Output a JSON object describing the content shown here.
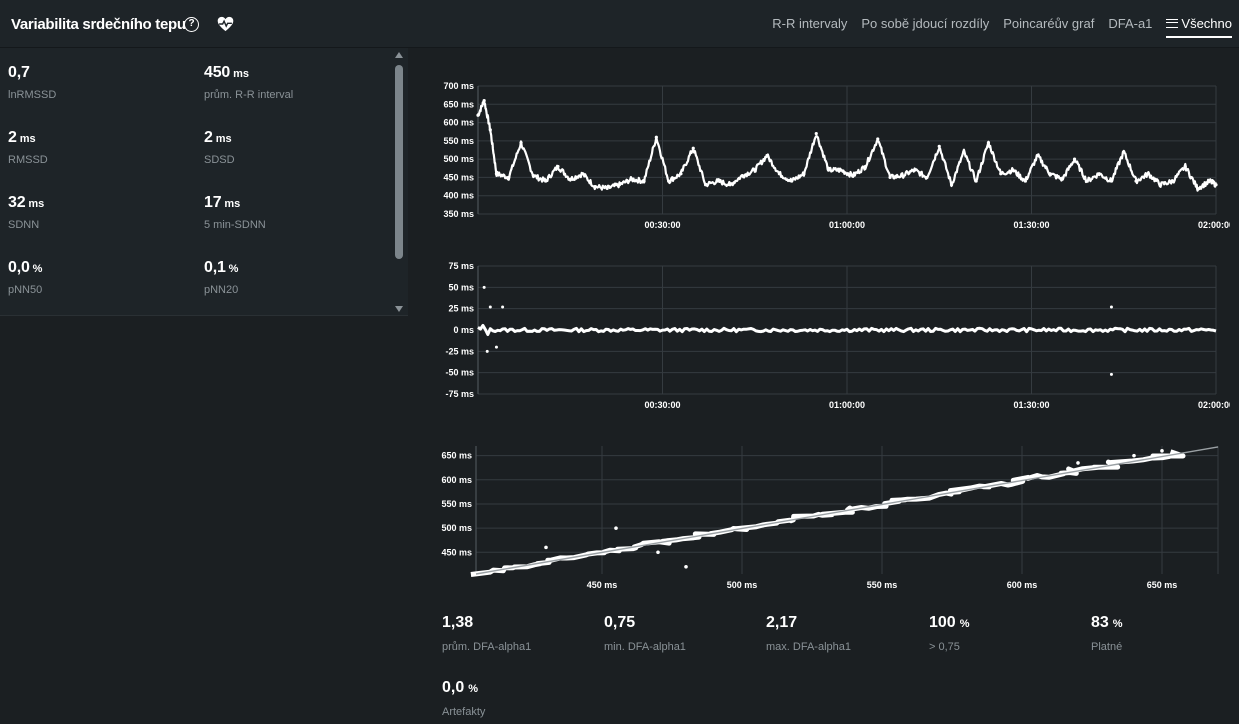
{
  "header": {
    "title": "Variabilita srdečního tepu",
    "help_icon": "question-circle-icon",
    "heart_icon": "heart-pulse-icon",
    "tabs": [
      {
        "label": "R-R intervaly"
      },
      {
        "label": "Po sobě jdoucí rozdíly"
      },
      {
        "label": "Poincaréův graf"
      },
      {
        "label": "DFA-a1"
      },
      {
        "label": "Všechno",
        "active": true
      }
    ]
  },
  "metrics": [
    {
      "value": "0,7",
      "unit": "",
      "label": "lnRMSSD"
    },
    {
      "value": "450",
      "unit": "ms",
      "label": "prům. R-R interval"
    },
    {
      "value": "2",
      "unit": "ms",
      "label": "RMSSD"
    },
    {
      "value": "2",
      "unit": "ms",
      "label": "SDSD"
    },
    {
      "value": "32",
      "unit": "ms",
      "label": "SDNN"
    },
    {
      "value": "17",
      "unit": "ms",
      "label": "5 min-SDNN"
    },
    {
      "value": "0,0",
      "unit": "%",
      "label": "pNN50"
    },
    {
      "value": "0,1",
      "unit": "%",
      "label": "pNN20"
    }
  ],
  "stats": [
    {
      "value": "1,38",
      "unit": "",
      "label": "prům. DFA-alpha1"
    },
    {
      "value": "0,75",
      "unit": "",
      "label": "min. DFA-alpha1"
    },
    {
      "value": "2,17",
      "unit": "",
      "label": "max. DFA-alpha1"
    },
    {
      "value": "100",
      "unit": "%",
      "label": "> 0,75"
    },
    {
      "value": "83",
      "unit": "%",
      "label": "Platné"
    },
    {
      "value": "0,0",
      "unit": "%",
      "label": "Artefakty"
    }
  ],
  "chart_data": [
    {
      "type": "scatter",
      "title": "",
      "ylim": [
        350,
        700
      ],
      "y_ticks": [
        "700 ms",
        "650 ms",
        "600 ms",
        "550 ms",
        "500 ms",
        "450 ms",
        "400 ms",
        "350 ms"
      ],
      "y_tick_values": [
        700,
        650,
        600,
        550,
        500,
        450,
        400,
        350
      ],
      "x_ticks": [
        "00:30:00",
        "01:00:00",
        "01:30:00",
        "02:00:00"
      ],
      "x_tick_values": [
        30,
        60,
        90,
        120
      ],
      "xlim": [
        0,
        120
      ],
      "grid": true,
      "series": [
        {
          "x": [
            0,
            1,
            2,
            3,
            5,
            7,
            9,
            11,
            13,
            15,
            17,
            19,
            21,
            23,
            25,
            27,
            29,
            31,
            33,
            35,
            37,
            39,
            41,
            43,
            45,
            47,
            49,
            51,
            53,
            55,
            57,
            59,
            61,
            63,
            65,
            67,
            69,
            71,
            73,
            75,
            77,
            79,
            81,
            83,
            85,
            87,
            89,
            91,
            93,
            95,
            97,
            99,
            101,
            103,
            105,
            107,
            109,
            111,
            113,
            115,
            117,
            119,
            120
          ],
          "values": [
            620,
            660,
            580,
            460,
            450,
            545,
            455,
            440,
            480,
            445,
            460,
            425,
            420,
            430,
            445,
            440,
            560,
            440,
            460,
            530,
            430,
            440,
            430,
            455,
            470,
            510,
            460,
            440,
            460,
            570,
            470,
            470,
            455,
            480,
            555,
            450,
            455,
            470,
            450,
            535,
            430,
            520,
            440,
            545,
            460,
            470,
            440,
            510,
            460,
            445,
            500,
            440,
            460,
            440,
            520,
            440,
            460,
            430,
            440,
            480,
            420,
            440,
            430
          ]
        }
      ]
    },
    {
      "type": "scatter",
      "title": "",
      "ylim": [
        -75,
        75
      ],
      "y_ticks": [
        "75 ms",
        "50 ms",
        "25 ms",
        "0 ms",
        "-25 ms",
        "-50 ms",
        "-75 ms"
      ],
      "y_tick_values": [
        75,
        50,
        25,
        0,
        -25,
        -50,
        -75
      ],
      "x_ticks": [
        "00:30:00",
        "01:00:00",
        "01:30:00",
        "02:00:00"
      ],
      "x_tick_values": [
        30,
        60,
        90,
        120
      ],
      "xlim": [
        0,
        120
      ],
      "grid": true,
      "series": [
        {
          "x": [
            1,
            2,
            4,
            3,
            1.5,
            103,
            103
          ],
          "values": [
            50,
            27,
            27,
            -20,
            -25,
            27,
            -52
          ]
        }
      ]
    },
    {
      "type": "scatter",
      "title": "",
      "xlim": [
        405,
        670
      ],
      "ylim": [
        405,
        670
      ],
      "y_ticks": [
        "650 ms",
        "600 ms",
        "550 ms",
        "500 ms",
        "450 ms"
      ],
      "y_tick_values": [
        650,
        600,
        550,
        500,
        450
      ],
      "x_ticks": [
        "450 ms",
        "500 ms",
        "550 ms",
        "600 ms",
        "650 ms"
      ],
      "x_tick_values": [
        450,
        500,
        550,
        600,
        650
      ],
      "grid": true,
      "series": [
        {
          "x": [
            430,
            455,
            480,
            470,
            650,
            620,
            640
          ],
          "values": [
            460,
            500,
            420,
            450,
            660,
            635,
            650
          ]
        }
      ]
    }
  ]
}
